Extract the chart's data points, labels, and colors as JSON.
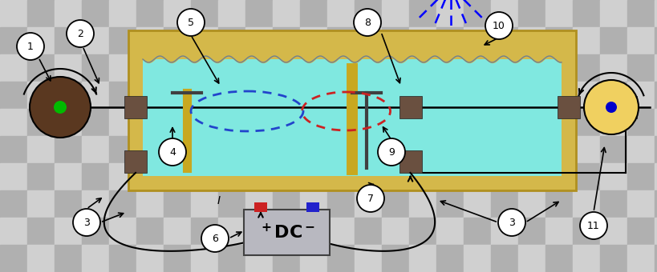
{
  "figsize": [
    8.2,
    3.4
  ],
  "dpi": 100,
  "bg_checker_light": "#d0d0d0",
  "bg_checker_dark": "#b0b0b0",
  "tank_frame_color": "#d4b84a",
  "tank_frame_edge": "#b09020",
  "liquid_color": "#80e8e0",
  "connector_color": "#6a5040",
  "rod_color": "#000000",
  "left_disk_face": "#5a3820",
  "left_disk_edge": "#000000",
  "green_dot": "#00bb00",
  "right_disk_face": "#f0d060",
  "right_disk_edge": "#000000",
  "blue_dot": "#0000cc",
  "ref_electrode_color": "#c8a820",
  "T_electrode_color": "#404040",
  "blue_oval_color": "#2244cc",
  "red_oval_color": "#cc2222",
  "spray_color": "#0000ff",
  "spray_box_color": "#0000ee",
  "dc_face": "#b8b8c0",
  "dc_edge": "#404040",
  "dc_plus_color": "#cc2222",
  "dc_minus_color": "#2222cc",
  "wire_color": "#000000",
  "circle_face": "#ffffff",
  "circle_edge": "#000000",
  "arrow_color": "#000000"
}
